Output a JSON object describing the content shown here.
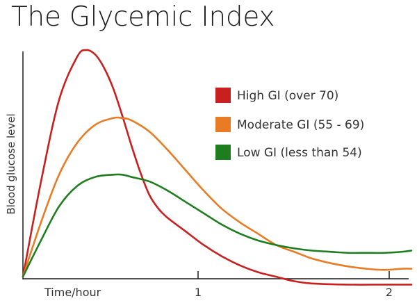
{
  "chart_data": {
    "type": "line",
    "title": "The Glycemic Index",
    "xlabel": "Time/hour",
    "ylabel": "Blood glucose level",
    "xlim": [
      0,
      2.15
    ],
    "ylim": [
      0,
      100
    ],
    "x_ticks": [
      1,
      2
    ],
    "x_tick_labels": [
      "1",
      "2"
    ],
    "grid": false,
    "legend_position": "top-right",
    "series": [
      {
        "name": "High GI (over 70)",
        "color": "#c8201e",
        "x": [
          0,
          0.1,
          0.2,
          0.3,
          0.35,
          0.4,
          0.45,
          0.5,
          0.55,
          0.6,
          0.65,
          0.7,
          0.75,
          0.8,
          0.9,
          1.0,
          1.1,
          1.2,
          1.3,
          1.4,
          1.5,
          1.6,
          1.8,
          2.0,
          2.15
        ],
        "y": [
          0,
          42,
          78,
          97,
          100,
          98,
          92,
          83,
          71,
          58,
          46,
          36,
          30,
          26,
          20,
          14,
          9,
          5,
          2,
          0,
          -2,
          -3,
          -3.5,
          -3.5,
          -3.5
        ]
      },
      {
        "name": "Moderate GI (55 - 69)",
        "color": "#e97b24",
        "x": [
          0,
          0.1,
          0.2,
          0.3,
          0.4,
          0.5,
          0.55,
          0.6,
          0.7,
          0.8,
          0.9,
          1.0,
          1.1,
          1.2,
          1.3,
          1.4,
          1.5,
          1.6,
          1.7,
          1.8,
          1.9,
          2.0,
          2.1,
          2.15
        ],
        "y": [
          0,
          24,
          45,
          59,
          67,
          70,
          70,
          69,
          64,
          56,
          47,
          38,
          30,
          24,
          19,
          14,
          11,
          8,
          6,
          4.5,
          3.5,
          3,
          3.5,
          3.5
        ]
      },
      {
        "name": "Low GI (less than 54)",
        "color": "#1e7d1e",
        "x": [
          0,
          0.1,
          0.2,
          0.3,
          0.4,
          0.5,
          0.55,
          0.6,
          0.7,
          0.8,
          0.9,
          1.0,
          1.1,
          1.2,
          1.3,
          1.4,
          1.5,
          1.6,
          1.7,
          1.8,
          1.9,
          2.0,
          2.1,
          2.15
        ],
        "y": [
          0,
          16,
          31,
          40,
          44,
          45,
          45,
          44,
          42,
          38,
          33,
          28,
          23,
          19,
          16,
          14,
          12.5,
          11.5,
          11,
          10.5,
          10.5,
          10.5,
          11,
          11.5
        ]
      }
    ]
  }
}
